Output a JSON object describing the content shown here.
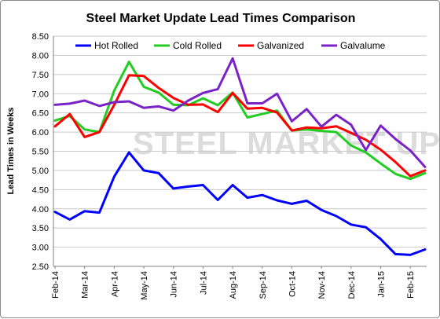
{
  "chart_data": {
    "type": "line",
    "title": "Steel Market Update Lead Times Comparison",
    "ylabel": "Lead Times in Weeks",
    "xlabel": "",
    "ylim": [
      2.5,
      8.5
    ],
    "yticks": [
      "8.50",
      "8.00",
      "7.50",
      "7.00",
      "6.50",
      "6.00",
      "5.50",
      "5.00",
      "4.50",
      "4.00",
      "3.50",
      "3.00",
      "2.50"
    ],
    "x_tick_labels": [
      "Feb-14",
      "Mar-14",
      "Apr-14",
      "May-14",
      "Jun-14",
      "Jul-14",
      "Aug-14",
      "Sep-14",
      "Oct-14",
      "Nov-14",
      "Dec-14",
      "Jan-15",
      "Feb-15"
    ],
    "watermark": "STEEL MARKET UPDA",
    "grid": "horizontal",
    "legend_position": "top",
    "series": [
      {
        "name": "Hot Rolled",
        "color": "#0000ff",
        "values": [
          3.92,
          3.72,
          3.94,
          3.9,
          4.84,
          5.47,
          5.0,
          4.93,
          4.53,
          4.58,
          4.62,
          4.23,
          4.62,
          4.29,
          4.36,
          4.22,
          4.13,
          4.21,
          3.97,
          3.81,
          3.59,
          3.52,
          3.21,
          2.82,
          2.8,
          2.94
        ]
      },
      {
        "name": "Cold Rolled",
        "color": "#22cc22",
        "values": [
          6.3,
          6.42,
          6.07,
          6.0,
          7.08,
          7.83,
          7.18,
          7.03,
          6.71,
          6.7,
          6.88,
          6.7,
          7.03,
          6.38,
          6.47,
          6.56,
          6.04,
          6.07,
          6.03,
          6.0,
          5.65,
          5.47,
          5.18,
          4.91,
          4.78,
          4.93
        ]
      },
      {
        "name": "Galvanized",
        "color": "#ff0000",
        "values": [
          6.15,
          6.47,
          5.87,
          6.0,
          6.71,
          7.48,
          7.46,
          7.15,
          6.89,
          6.71,
          6.72,
          6.52,
          7.02,
          6.61,
          6.63,
          6.51,
          6.04,
          6.12,
          6.1,
          6.15,
          5.98,
          5.8,
          5.54,
          5.22,
          4.85,
          5.0
        ]
      },
      {
        "name": "Galvalume",
        "color": "#7a22c8",
        "values": [
          6.71,
          6.74,
          6.82,
          6.68,
          6.78,
          6.8,
          6.63,
          6.67,
          6.56,
          6.82,
          7.02,
          7.12,
          7.92,
          6.75,
          6.75,
          7.0,
          6.28,
          6.6,
          6.14,
          6.45,
          6.19,
          5.53,
          6.17,
          5.82,
          5.52,
          5.09
        ]
      }
    ]
  }
}
